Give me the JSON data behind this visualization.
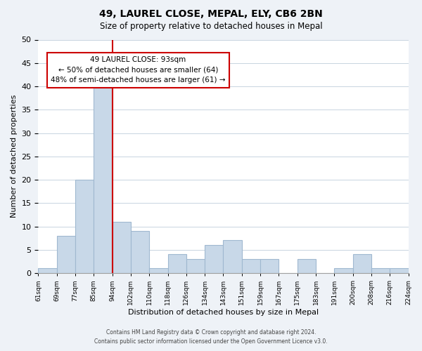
{
  "title": "49, LAUREL CLOSE, MEPAL, ELY, CB6 2BN",
  "subtitle": "Size of property relative to detached houses in Mepal",
  "xlabel": "Distribution of detached houses by size in Mepal",
  "ylabel": "Number of detached properties",
  "bin_labels": [
    "61sqm",
    "69sqm",
    "77sqm",
    "85sqm",
    "94sqm",
    "102sqm",
    "110sqm",
    "118sqm",
    "126sqm",
    "134sqm",
    "143sqm",
    "151sqm",
    "159sqm",
    "167sqm",
    "175sqm",
    "183sqm",
    "191sqm",
    "200sqm",
    "208sqm",
    "216sqm",
    "224sqm"
  ],
  "bar_heights": [
    1,
    8,
    20,
    41,
    11,
    9,
    1,
    4,
    3,
    6,
    7,
    3,
    3,
    0,
    3,
    0,
    1,
    4,
    1,
    1
  ],
  "bar_color": "#c8d8e8",
  "bar_edge_color": "#a0b8d0",
  "vline_x": 4,
  "vline_color": "#cc0000",
  "annotation_title": "49 LAUREL CLOSE: 93sqm",
  "annotation_line1": "← 50% of detached houses are smaller (64)",
  "annotation_line2": "48% of semi-detached houses are larger (61) →",
  "annotation_box_color": "#ffffff",
  "annotation_box_edge": "#cc0000",
  "ylim": [
    0,
    50
  ],
  "yticks": [
    0,
    5,
    10,
    15,
    20,
    25,
    30,
    35,
    40,
    45,
    50
  ],
  "footer_line1": "Contains HM Land Registry data © Crown copyright and database right 2024.",
  "footer_line2": "Contains public sector information licensed under the Open Government Licence v3.0.",
  "bg_color": "#eef2f7",
  "plot_bg_color": "#ffffff"
}
